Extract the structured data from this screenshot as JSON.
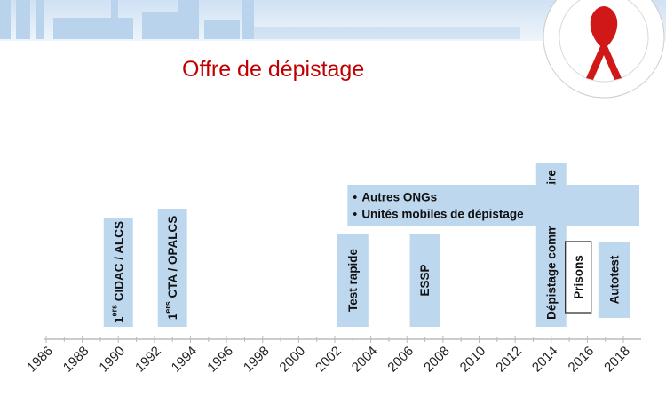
{
  "header": {
    "title": "Offre de dépistage"
  },
  "timeline": {
    "years": [
      1986,
      1988,
      1990,
      1992,
      1994,
      1996,
      1998,
      2000,
      2002,
      2004,
      2006,
      2008,
      2010,
      2012,
      2014,
      2016,
      2018
    ],
    "events": [
      {
        "prefix": "1",
        "sup": "ers",
        "label": " CIDAC / ALCS",
        "year": 1990
      },
      {
        "prefix": "1",
        "sup": "ers",
        "label": " CTA / OPALCS",
        "year": 1993
      },
      {
        "label": "Test rapide",
        "year": 2003
      },
      {
        "label": "ESSP",
        "year": 2007
      },
      {
        "label": "Dépistage communautaire",
        "year": 2014
      },
      {
        "label": "Prisons",
        "year": 2015.5
      },
      {
        "label": "Autotest",
        "year": 2017.5
      }
    ],
    "band": {
      "year": 2003,
      "items": [
        "Autres ONGs",
        "Unités mobiles de dépistage"
      ]
    }
  }
}
